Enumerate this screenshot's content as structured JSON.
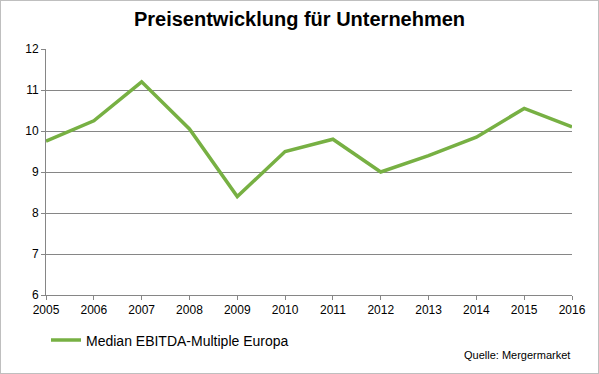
{
  "chart_data": {
    "type": "line",
    "title": "Preisentwicklung für Unternehmen",
    "categories": [
      "2005",
      "2006",
      "2007",
      "2008",
      "2009",
      "2010",
      "2011",
      "2012",
      "2013",
      "2014",
      "2015",
      "2016"
    ],
    "series": [
      {
        "name": "Median EBITDA-Multiple Europa",
        "color": "#77b043",
        "values": [
          9.75,
          10.25,
          11.2,
          10.05,
          8.4,
          9.5,
          9.8,
          9.0,
          9.4,
          9.85,
          10.55,
          10.1
        ]
      }
    ],
    "ylim": [
      6,
      12
    ],
    "yticks": [
      6,
      7,
      8,
      9,
      10,
      11,
      12
    ],
    "grid": true,
    "legend": "bottom left",
    "annotations": [
      "Quelle: Mergermarket"
    ]
  }
}
